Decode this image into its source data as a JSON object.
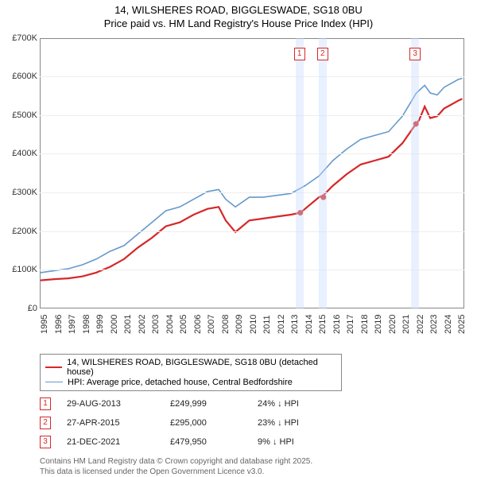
{
  "title_line1": "14, WILSHERES ROAD, BIGGLESWADE, SG18 0BU",
  "title_line2": "Price paid vs. HM Land Registry's House Price Index (HPI)",
  "chart": {
    "type": "line",
    "background_color": "#ffffff",
    "grid_color": "#eeeeee",
    "axis_color": "#888888",
    "ylim": [
      0,
      700000
    ],
    "yticks": [
      0,
      100000,
      200000,
      300000,
      400000,
      500000,
      600000,
      700000
    ],
    "ytick_labels": [
      "£0",
      "£100K",
      "£200K",
      "£300K",
      "£400K",
      "£500K",
      "£600K",
      "£700K"
    ],
    "xlim": [
      1995,
      2025.5
    ],
    "xticks": [
      1995,
      1996,
      1997,
      1998,
      1999,
      2000,
      2001,
      2002,
      2003,
      2004,
      2005,
      2006,
      2007,
      2008,
      2009,
      2010,
      2011,
      2012,
      2013,
      2014,
      2015,
      2016,
      2017,
      2018,
      2019,
      2020,
      2021,
      2022,
      2023,
      2024,
      2025
    ],
    "marker_band_color": "rgba(200,220,255,0.4)",
    "markers": [
      {
        "n": "1",
        "x": 2013.66
      },
      {
        "n": "2",
        "x": 2015.32
      },
      {
        "n": "3",
        "x": 2021.97
      }
    ],
    "series": [
      {
        "name": "price_paid",
        "color": "#d62728",
        "width": 2.2,
        "data": [
          [
            1995,
            75000
          ],
          [
            1996,
            78000
          ],
          [
            1997,
            80000
          ],
          [
            1998,
            85000
          ],
          [
            1999,
            95000
          ],
          [
            2000,
            110000
          ],
          [
            2001,
            130000
          ],
          [
            2002,
            160000
          ],
          [
            2003,
            185000
          ],
          [
            2004,
            215000
          ],
          [
            2005,
            225000
          ],
          [
            2006,
            245000
          ],
          [
            2007,
            260000
          ],
          [
            2007.8,
            265000
          ],
          [
            2008.3,
            230000
          ],
          [
            2009,
            200000
          ],
          [
            2010,
            230000
          ],
          [
            2011,
            235000
          ],
          [
            2012,
            240000
          ],
          [
            2013,
            245000
          ],
          [
            2013.66,
            249999
          ],
          [
            2014,
            260000
          ],
          [
            2015,
            290000
          ],
          [
            2015.32,
            295000
          ],
          [
            2016,
            320000
          ],
          [
            2017,
            350000
          ],
          [
            2018,
            375000
          ],
          [
            2019,
            385000
          ],
          [
            2020,
            395000
          ],
          [
            2021,
            430000
          ],
          [
            2021.97,
            479950
          ],
          [
            2022.2,
            490000
          ],
          [
            2022.6,
            525000
          ],
          [
            2023,
            495000
          ],
          [
            2023.5,
            500000
          ],
          [
            2024,
            520000
          ],
          [
            2024.5,
            530000
          ],
          [
            2025,
            540000
          ],
          [
            2025.3,
            545000
          ]
        ]
      },
      {
        "name": "hpi",
        "color": "#6699cc",
        "width": 1.6,
        "data": [
          [
            1995,
            95000
          ],
          [
            1996,
            100000
          ],
          [
            1997,
            105000
          ],
          [
            1998,
            115000
          ],
          [
            1999,
            130000
          ],
          [
            2000,
            150000
          ],
          [
            2001,
            165000
          ],
          [
            2002,
            195000
          ],
          [
            2003,
            225000
          ],
          [
            2004,
            255000
          ],
          [
            2005,
            265000
          ],
          [
            2006,
            285000
          ],
          [
            2007,
            305000
          ],
          [
            2007.8,
            310000
          ],
          [
            2008.3,
            285000
          ],
          [
            2009,
            265000
          ],
          [
            2010,
            290000
          ],
          [
            2011,
            290000
          ],
          [
            2012,
            295000
          ],
          [
            2013,
            300000
          ],
          [
            2014,
            320000
          ],
          [
            2015,
            345000
          ],
          [
            2016,
            385000
          ],
          [
            2017,
            415000
          ],
          [
            2018,
            440000
          ],
          [
            2019,
            450000
          ],
          [
            2020,
            460000
          ],
          [
            2021,
            500000
          ],
          [
            2022,
            560000
          ],
          [
            2022.6,
            580000
          ],
          [
            2023,
            560000
          ],
          [
            2023.5,
            555000
          ],
          [
            2024,
            575000
          ],
          [
            2024.5,
            585000
          ],
          [
            2025,
            595000
          ],
          [
            2025.3,
            598000
          ]
        ]
      }
    ]
  },
  "legend": [
    {
      "color": "#d62728",
      "width": 2.2,
      "label": "14, WILSHERES ROAD, BIGGLESWADE, SG18 0BU (detached house)"
    },
    {
      "color": "#6699cc",
      "width": 1.6,
      "label": "HPI: Average price, detached house, Central Bedfordshire"
    }
  ],
  "datarows": [
    {
      "n": "1",
      "date": "29-AUG-2013",
      "price": "£249,999",
      "hpi": "24% ↓ HPI"
    },
    {
      "n": "2",
      "date": "27-APR-2015",
      "price": "£295,000",
      "hpi": "23% ↓ HPI"
    },
    {
      "n": "3",
      "date": "21-DEC-2021",
      "price": "£479,950",
      "hpi": "9% ↓ HPI"
    }
  ],
  "footer_line1": "Contains HM Land Registry data © Crown copyright and database right 2025.",
  "footer_line2": "This data is licensed under the Open Government Licence v3.0."
}
